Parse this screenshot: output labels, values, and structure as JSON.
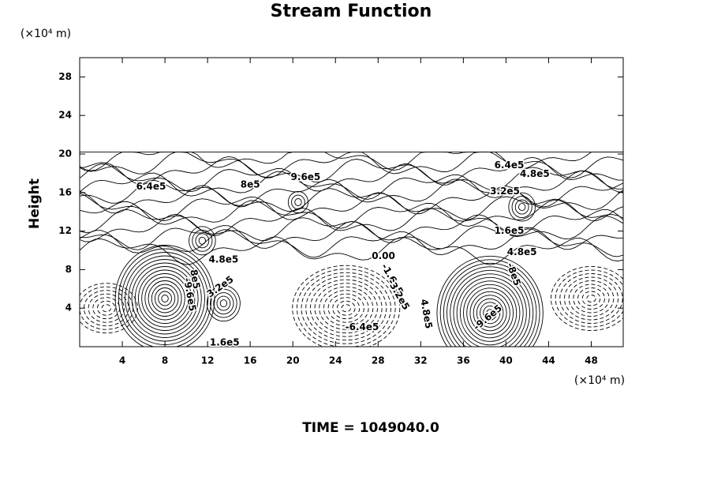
{
  "chart_data": {
    "type": "contour",
    "title": "Stream Function",
    "ylabel": "Height",
    "y_unit": "(×10⁴ m)",
    "x_unit": "(×10⁴ m)",
    "footer": "TIME = 1049040.0",
    "xlim": [
      0,
      51
    ],
    "xticks": [
      4,
      8,
      12,
      16,
      20,
      24,
      28,
      32,
      36,
      40,
      44,
      48
    ],
    "ylim": [
      0,
      30
    ],
    "yticks": [
      4,
      8,
      12,
      16,
      20,
      24,
      28
    ],
    "annotations": [
      "6.4e5",
      "8e5",
      "9.6e5",
      "6.4e5",
      "4.8e5",
      "3.2e5",
      "1.6e5",
      "4.8e5",
      "3.2e5",
      "4.8e5",
      "1.6e5",
      "0.00",
      "-1.6e5",
      "-3.2e5",
      "-6.4e5",
      "-9.6e5",
      "-9.6e5",
      "4.8e5",
      "-8e5",
      "8e5"
    ]
  }
}
